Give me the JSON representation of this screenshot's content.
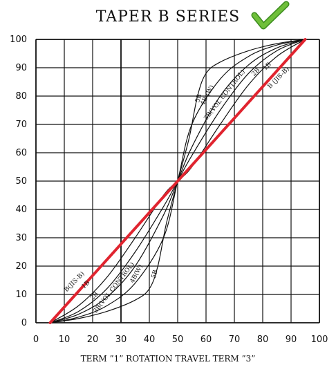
{
  "chart_data": {
    "type": "line",
    "title": "TAPER B SERIES",
    "xlabel": "TERM ”1” ROTATION TRAVEL TERM ”3”",
    "ylabel": "",
    "xlim": [
      0,
      100
    ],
    "ylim": [
      0,
      100
    ],
    "x_ticks": [
      "0",
      "10",
      "20",
      "30",
      "40",
      "50",
      "60",
      "70",
      "80",
      "90",
      "100"
    ],
    "y_ticks": [
      "0",
      "10",
      "20",
      "30",
      "40",
      "50",
      "60",
      "70",
      "80",
      "90",
      "100"
    ],
    "grid": true,
    "check_icon": "check-mark-icon",
    "colors": {
      "grid": "#111111",
      "curves": "#111111",
      "highlight": "#e0242f",
      "check": "#6fbf3a"
    },
    "series": [
      {
        "name": "5B",
        "labels": [
          "5B",
          "5B"
        ],
        "x": [
          5,
          15,
          25,
          35,
          40,
          43,
          46,
          50,
          54,
          57,
          60,
          65,
          75,
          85,
          95
        ],
        "y": [
          0,
          1.5,
          4,
          8,
          12,
          20,
          35,
          50,
          65,
          80,
          88,
          92,
          96,
          98.5,
          100
        ]
      },
      {
        "name": "4B(W)",
        "labels": [
          "4B(W)",
          "4B (W)"
        ],
        "x": [
          5,
          15,
          25,
          35,
          45,
          50,
          55,
          65,
          75,
          85,
          95
        ],
        "y": [
          0,
          2,
          6,
          14,
          30,
          50,
          70,
          86,
          94,
          98,
          100
        ]
      },
      {
        "name": "3B(VOL CONTROL)",
        "labels": [
          "3B(VOL CONTROL)",
          "3B(VOL CONTROL)"
        ],
        "x": [
          5,
          15,
          25,
          35,
          45,
          50,
          55,
          65,
          75,
          85,
          95
        ],
        "y": [
          0,
          3,
          9,
          20,
          38,
          50,
          62,
          80,
          91,
          97,
          100
        ]
      },
      {
        "name": "2B",
        "labels": [
          "2B",
          "2B"
        ],
        "x": [
          5,
          15,
          25,
          35,
          45,
          50,
          55,
          65,
          75,
          85,
          95
        ],
        "y": [
          0,
          4,
          12,
          25,
          41,
          50,
          59,
          75,
          88,
          96,
          100
        ]
      },
      {
        "name": "1B",
        "labels": [
          "1B",
          "1B"
        ],
        "x": [
          5,
          15,
          25,
          35,
          45,
          50,
          55,
          65,
          75,
          85,
          95
        ],
        "y": [
          0,
          6,
          16,
          30,
          45,
          50,
          55,
          70,
          84,
          94,
          100
        ]
      },
      {
        "name": "B(JIS-B)",
        "labels": [
          "B(JIS-B)",
          "B (JIS-B)"
        ],
        "x": [
          5,
          95
        ],
        "y": [
          0,
          100
        ]
      }
    ],
    "highlight_series": "B(JIS-B)"
  }
}
